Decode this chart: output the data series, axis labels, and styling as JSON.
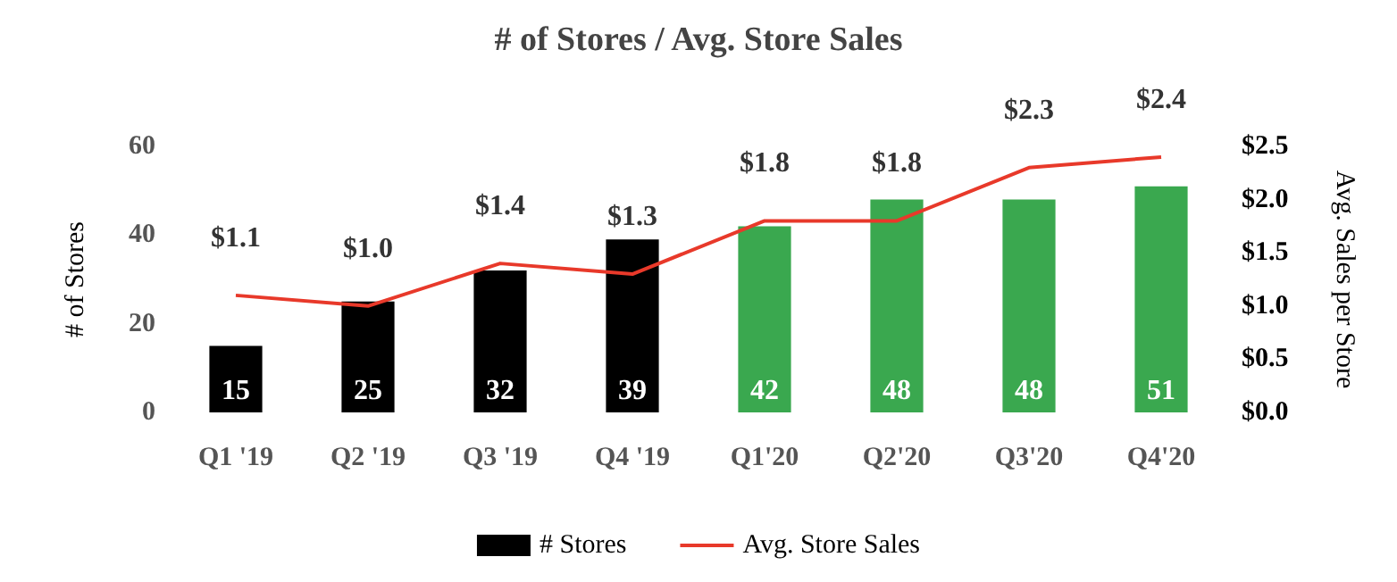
{
  "chart_data": {
    "type": "bar",
    "title": "# of Stores / Avg. Store Sales",
    "ylabel": "# of Stores",
    "y2label": "Avg. Sales per Store",
    "categories": [
      "Q1 '19",
      "Q2 '19",
      "Q3 '19",
      "Q4 '19",
      "Q1'20",
      "Q2'20",
      "Q3'20",
      "Q4'20"
    ],
    "series": [
      {
        "name": "# Stores",
        "colors": [
          "#000000",
          "#000000",
          "#000000",
          "#000000",
          "#3aa84f",
          "#3aa84f",
          "#3aa84f",
          "#3aa84f"
        ],
        "values": [
          15,
          25,
          32,
          39,
          42,
          48,
          48,
          51
        ],
        "data_labels": true
      },
      {
        "name": "Avg. Store Sales",
        "type": "line",
        "axis": "y2",
        "color": "#e8392a",
        "values": [
          1.1,
          1.0,
          1.4,
          1.3,
          1.8,
          1.8,
          2.3,
          2.4
        ],
        "value_labels": [
          "$1.1",
          "$1.0",
          "$1.4",
          "$1.3",
          "$1.8",
          "$1.8",
          "$2.3",
          "$2.4"
        ]
      }
    ],
    "ylim": [
      0,
      60
    ],
    "yticks": [
      0,
      20,
      40,
      60
    ],
    "y2lim": [
      0,
      2.5
    ],
    "y2ticks": [
      {
        "value": 0,
        "label": "$0.0"
      },
      {
        "value": 0.5,
        "label": "$0.5"
      },
      {
        "value": 1,
        "label": "$1.0"
      },
      {
        "value": 1.5,
        "label": "$1.5"
      },
      {
        "value": 2,
        "label": "$2.0"
      },
      {
        "value": 2.5,
        "label": "$2.5"
      }
    ],
    "grid": false,
    "legend": "bottom",
    "marker": "none",
    "line_style": "solid"
  }
}
